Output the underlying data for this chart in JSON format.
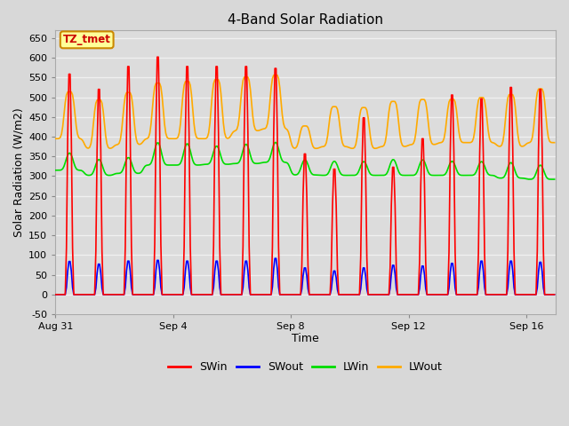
{
  "title": "4-Band Solar Radiation",
  "xlabel": "Time",
  "ylabel": "Solar Radiation (W/m2)",
  "ylim": [
    -50,
    670
  ],
  "background_color": "#d8d8d8",
  "plot_bg_color": "#dcdcdc",
  "grid_color": "#f0f0f0",
  "colors": {
    "SWin": "#ff0000",
    "SWout": "#0000ff",
    "LWin": "#00dd00",
    "LWout": "#ffaa00"
  },
  "annotation_text": "TZ_tmet",
  "annotation_bg": "#ffff99",
  "annotation_border": "#cc8800",
  "annotation_text_color": "#cc0000",
  "x_tick_labels": [
    "Aug 31",
    "Sep 4",
    "Sep 8",
    "Sep 12",
    "Sep 16"
  ],
  "x_tick_positions": [
    0,
    4,
    8,
    12,
    16
  ],
  "figsize": [
    6.4,
    4.8
  ],
  "dpi": 100
}
